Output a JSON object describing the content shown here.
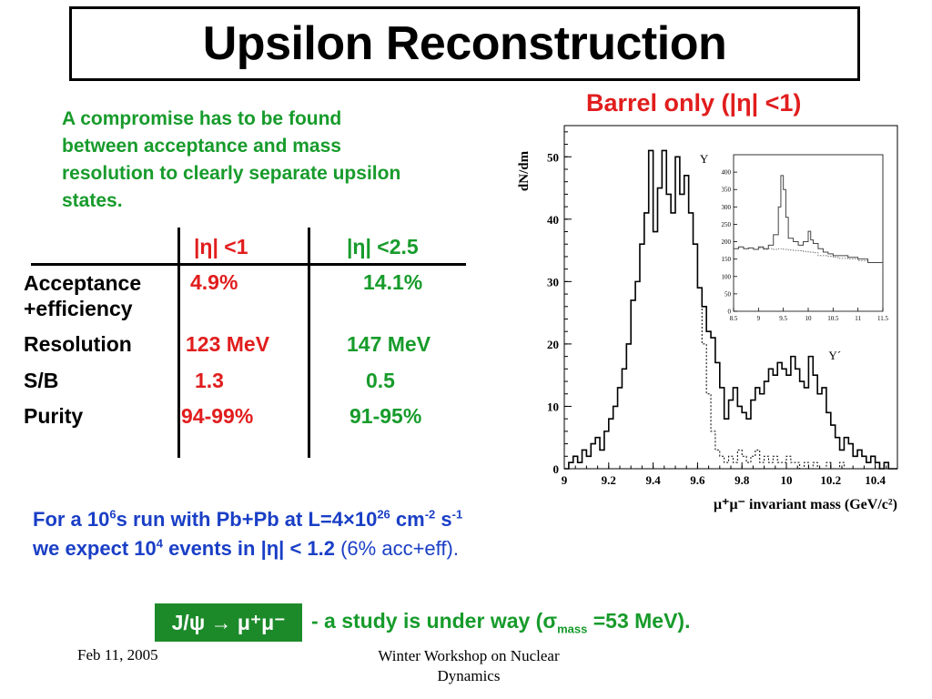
{
  "title": "Upsilon Reconstruction",
  "intro": "A compromise has to be found between acceptance and mass resolution to clearly separate upsilon states.",
  "table": {
    "col1_header": "|η| <1",
    "col2_header": "|η| <2.5",
    "rows": [
      {
        "label": "Acceptance\n+efficiency",
        "v1": "4.9%",
        "v2": "14.1%"
      },
      {
        "label": "Resolution",
        "v1": "123 MeV",
        "v2": "147 MeV"
      },
      {
        "label": "S/B",
        "v1": "1.3",
        "v2": "0.5"
      },
      {
        "label": "Purity",
        "v1": "94-99%",
        "v2": "91-95%"
      }
    ]
  },
  "chart_heading": "Barrel only (|η| <1)",
  "chart_data": {
    "type": "line",
    "ylabel": "dN/dm",
    "xlabel": "μ⁺μ⁻ invariant mass (GeV/c²)",
    "xlim": [
      9.0,
      10.5
    ],
    "ylim": [
      0,
      55
    ],
    "x_ticks": [
      "9",
      "9.2",
      "9.4",
      "9.6",
      "9.8",
      "10",
      "10.2",
      "10.4"
    ],
    "y_ticks": [
      "0",
      "10",
      "20",
      "30",
      "40",
      "50"
    ],
    "annotations": [
      "Υ",
      "Υ´"
    ],
    "series": [
      {
        "style": "solid",
        "x": [
          9.0,
          9.02,
          9.04,
          9.06,
          9.08,
          9.1,
          9.12,
          9.14,
          9.16,
          9.18,
          9.2,
          9.22,
          9.24,
          9.26,
          9.28,
          9.3,
          9.32,
          9.34,
          9.36,
          9.38,
          9.4,
          9.42,
          9.44,
          9.46,
          9.48,
          9.5,
          9.52,
          9.54,
          9.56,
          9.58,
          9.6,
          9.62,
          9.64,
          9.66,
          9.68,
          9.7,
          9.72,
          9.74,
          9.76,
          9.78,
          9.8,
          9.82,
          9.84,
          9.86,
          9.88,
          9.9,
          9.92,
          9.94,
          9.96,
          9.98,
          10.0,
          10.02,
          10.04,
          10.06,
          10.08,
          10.1,
          10.12,
          10.14,
          10.16,
          10.18,
          10.2,
          10.22,
          10.24,
          10.26,
          10.28,
          10.3,
          10.32,
          10.34,
          10.36,
          10.38,
          10.4,
          10.42,
          10.44,
          10.46,
          10.48
        ],
        "y": [
          0,
          1,
          2,
          1,
          3,
          2,
          4,
          5,
          3,
          6,
          8,
          10,
          13,
          16,
          20,
          27,
          30,
          36,
          41,
          51,
          38,
          45,
          51,
          44,
          41,
          50,
          44,
          47,
          41,
          36,
          29,
          26,
          22,
          21,
          17,
          13,
          8,
          11,
          13,
          10,
          9,
          8,
          11,
          13,
          12,
          14,
          16,
          15,
          17,
          16,
          15,
          18,
          16,
          14,
          13,
          18,
          15,
          12,
          13,
          9,
          7,
          5,
          3,
          5,
          4,
          2,
          3,
          2,
          1,
          2,
          1,
          0,
          1,
          0,
          0
        ]
      },
      {
        "style": "dotted",
        "x": [
          9.0,
          9.02,
          9.04,
          9.06,
          9.08,
          9.1,
          9.12,
          9.14,
          9.16,
          9.18,
          9.2,
          9.22,
          9.24,
          9.26,
          9.28,
          9.3,
          9.32,
          9.34,
          9.36,
          9.38,
          9.4,
          9.42,
          9.44,
          9.46,
          9.48,
          9.5,
          9.52,
          9.54,
          9.56,
          9.58,
          9.6,
          9.62,
          9.64,
          9.66,
          9.68,
          9.7,
          9.72,
          9.74,
          9.76,
          9.78,
          9.8,
          9.82,
          9.84,
          9.86,
          9.88,
          9.9,
          9.92,
          9.94,
          9.96,
          9.98,
          10.0,
          10.02,
          10.04,
          10.06,
          10.08,
          10.1,
          10.12,
          10.14,
          10.16,
          10.18,
          10.2,
          10.22,
          10.24,
          10.26,
          10.28,
          10.3,
          10.32,
          10.34,
          10.36,
          10.38,
          10.4,
          10.42,
          10.44,
          10.46,
          10.48
        ],
        "y": [
          0,
          1,
          2,
          1,
          3,
          2,
          4,
          5,
          3,
          6,
          8,
          10,
          13,
          16,
          20,
          27,
          30,
          36,
          41,
          51,
          38,
          45,
          51,
          44,
          41,
          50,
          44,
          47,
          41,
          36,
          29,
          20,
          12,
          6,
          3,
          2,
          1,
          2,
          1,
          3,
          2,
          1,
          2,
          3,
          1,
          2,
          1,
          2,
          1,
          1,
          2,
          1,
          1,
          0,
          1,
          0,
          1,
          0,
          0,
          1,
          0,
          0,
          1,
          0,
          0,
          0,
          0,
          0,
          0,
          0,
          0,
          0,
          0,
          0,
          0
        ]
      }
    ],
    "inset": {
      "xlim": [
        8.5,
        11.5
      ],
      "ylim": [
        0,
        450
      ],
      "x_ticks": [
        "8.5",
        "9",
        "9.5",
        "10",
        "10.5",
        "11",
        "11.5"
      ],
      "y_ticks": [
        "0",
        "50",
        "100",
        "150",
        "200",
        "250",
        "300",
        "350",
        "400"
      ],
      "series": [
        {
          "style": "solid",
          "x": [
            8.5,
            8.6,
            8.7,
            8.8,
            8.9,
            9.0,
            9.1,
            9.2,
            9.3,
            9.4,
            9.45,
            9.5,
            9.55,
            9.6,
            9.7,
            9.8,
            9.9,
            10.0,
            10.05,
            10.1,
            10.2,
            10.3,
            10.4,
            10.5,
            10.6,
            10.8,
            11.0,
            11.2,
            11.5
          ],
          "y": [
            180,
            185,
            180,
            182,
            178,
            185,
            180,
            190,
            220,
            300,
            390,
            350,
            270,
            210,
            200,
            190,
            200,
            230,
            205,
            195,
            180,
            170,
            165,
            160,
            160,
            155,
            150,
            140,
            135
          ]
        },
        {
          "style": "dotted",
          "x": [
            8.5,
            8.6,
            8.7,
            8.8,
            8.9,
            9.0,
            9.1,
            9.2,
            9.3,
            9.4,
            9.5,
            9.6,
            9.7,
            9.8,
            9.9,
            10.0,
            10.1,
            10.2,
            10.3,
            10.4,
            10.5,
            10.6,
            10.8,
            11.0,
            11.2,
            11.5
          ],
          "y": [
            180,
            185,
            180,
            182,
            178,
            182,
            178,
            180,
            178,
            180,
            178,
            176,
            175,
            174,
            172,
            170,
            168,
            160,
            160,
            158,
            155,
            152,
            150,
            145,
            140,
            135
          ]
        }
      ]
    }
  },
  "statement": {
    "line1": {
      "a": "For a 10",
      "a_sup": "6",
      "b": "s run with Pb+Pb at L=4×10",
      "b_sup": "26",
      "c": " cm",
      "c_sup": "-2",
      "d": " s",
      "d_sup": "-1"
    },
    "line2": {
      "a": "we expect 10",
      "a_sup": "4",
      "b": " events in |η| < 1.2 ",
      "c": "(6% acc+eff)."
    }
  },
  "jpsi": {
    "label": "J/ψ → μ⁺μ⁻",
    "text_a": "- a study is under way (σ",
    "text_sub": "mass",
    "text_b": " =53 MeV)."
  },
  "footer": {
    "date": "Feb 11, 2005",
    "event_line1": "Winter Workshop on Nuclear",
    "event_line2": "Dynamics"
  }
}
